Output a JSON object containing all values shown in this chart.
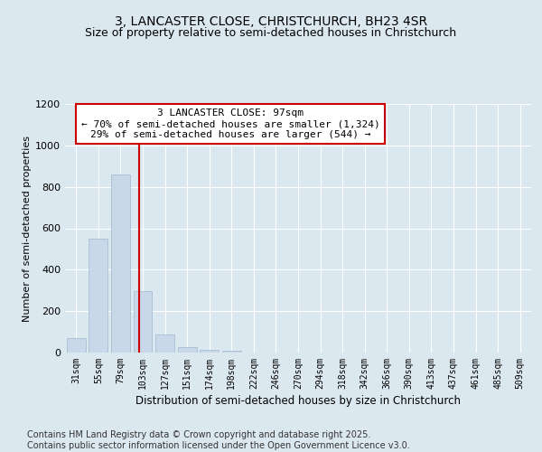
{
  "title1": "3, LANCASTER CLOSE, CHRISTCHURCH, BH23 4SR",
  "title2": "Size of property relative to semi-detached houses in Christchurch",
  "xlabel": "Distribution of semi-detached houses by size in Christchurch",
  "ylabel": "Number of semi-detached properties",
  "categories": [
    "31sqm",
    "55sqm",
    "79sqm",
    "103sqm",
    "127sqm",
    "151sqm",
    "174sqm",
    "198sqm",
    "222sqm",
    "246sqm",
    "270sqm",
    "294sqm",
    "318sqm",
    "342sqm",
    "366sqm",
    "390sqm",
    "413sqm",
    "437sqm",
    "461sqm",
    "485sqm",
    "509sqm"
  ],
  "values": [
    68,
    550,
    860,
    295,
    87,
    28,
    12,
    10,
    0,
    0,
    0,
    0,
    0,
    0,
    0,
    0,
    0,
    0,
    0,
    0,
    0
  ],
  "bar_color": "#c8d8e8",
  "bar_edge_color": "#a0b8cc",
  "vline_x": 2.85,
  "vline_color": "#cc0000",
  "annotation_line1": "3 LANCASTER CLOSE: 97sqm",
  "annotation_line2": "← 70% of semi-detached houses are smaller (1,324)",
  "annotation_line3": "29% of semi-detached houses are larger (544) →",
  "annotation_box_color": "#cc0000",
  "annotation_box_bg": "#ffffff",
  "ylim": [
    0,
    1200
  ],
  "yticks": [
    0,
    200,
    400,
    600,
    800,
    1000,
    1200
  ],
  "bg_color": "#dce8f0",
  "plot_bg_color": "#dce8f0",
  "grid_color": "#ffffff",
  "footer_text": "Contains HM Land Registry data © Crown copyright and database right 2025.\nContains public sector information licensed under the Open Government Licence v3.0.",
  "title1_fontsize": 10,
  "title2_fontsize": 9,
  "annotation_fontsize": 8,
  "footer_fontsize": 7,
  "ylabel_fontsize": 8,
  "xlabel_fontsize": 8.5
}
